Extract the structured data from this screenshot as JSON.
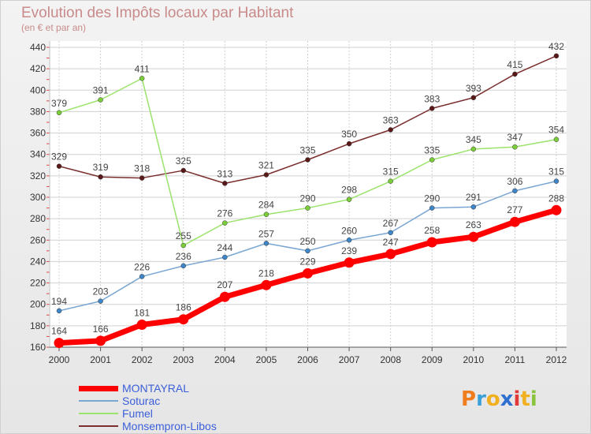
{
  "header": {
    "title": "Evolution des Impôts locaux par Habitant",
    "subtitle": "(en € et par an)"
  },
  "brand": {
    "text": "Proxiti",
    "colors": [
      "#f07d1d",
      "#3aa0d8",
      "#f0b020",
      "#2f6fd0",
      "#e23a3a",
      "#f0b020",
      "#8ac43f"
    ]
  },
  "chart_data": {
    "type": "line",
    "x": [
      "2000",
      "2001",
      "2002",
      "2003",
      "2004",
      "2005",
      "2006",
      "2007",
      "2008",
      "2009",
      "2010",
      "2011",
      "2012"
    ],
    "ylim": [
      160,
      440
    ],
    "yticks": [
      160,
      180,
      200,
      220,
      240,
      260,
      280,
      300,
      320,
      340,
      360,
      380,
      400,
      420,
      440
    ],
    "grid": true,
    "legend_position": "bottom-left",
    "series": [
      {
        "name": "MONTAYRAL",
        "color": "#ff0000",
        "width": 7,
        "values": [
          164,
          166,
          181,
          186,
          207,
          218,
          229,
          239,
          247,
          258,
          263,
          277,
          288
        ]
      },
      {
        "name": "Soturac",
        "color": "#7aa6d2",
        "width": 1.5,
        "marker": "#3f86c8",
        "values": [
          194,
          203,
          226,
          236,
          244,
          257,
          250,
          260,
          267,
          290,
          291,
          306,
          315
        ]
      },
      {
        "name": "Fumel",
        "color": "#9be36a",
        "width": 1.5,
        "marker": "#7ccd3a",
        "values": [
          379,
          391,
          411,
          255,
          276,
          284,
          290,
          298,
          315,
          335,
          345,
          347,
          354
        ]
      },
      {
        "name": "Monsempron-Libos",
        "color": "#7a2e2e",
        "width": 1.5,
        "marker": "#5a1818",
        "values": [
          329,
          319,
          318,
          325,
          313,
          321,
          335,
          350,
          363,
          383,
          393,
          415,
          432
        ]
      }
    ]
  }
}
